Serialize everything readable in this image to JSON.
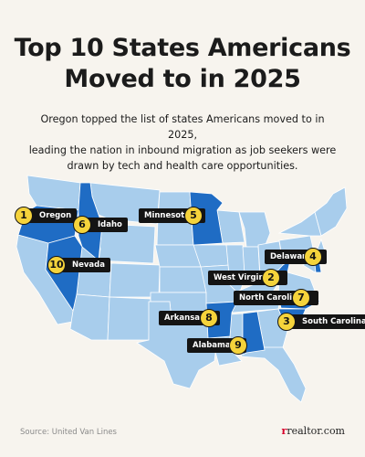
{
  "title": {
    "line1": "Top 10 States Americans",
    "line2": "Moved to in 2025"
  },
  "subtitle": {
    "line1": "Oregon topped the list of states Americans moved to in 2025,",
    "line2": "leading the nation in inbound migration as job seekers were",
    "line3": "drawn by tech and health care opportunities."
  },
  "colors": {
    "highlight": "#1f6cc4",
    "base": "#a8cdec",
    "border": "#ffffff",
    "badge": "#f5d33b",
    "label_bg": "#141414"
  },
  "rankings": [
    {
      "rank": "1",
      "state": "Oregon"
    },
    {
      "rank": "2",
      "state": "West Virginia"
    },
    {
      "rank": "3",
      "state": "South Carolina"
    },
    {
      "rank": "4",
      "state": "Delaware"
    },
    {
      "rank": "5",
      "state": "Minnesota"
    },
    {
      "rank": "6",
      "state": "Idaho"
    },
    {
      "rank": "7",
      "state": "North Carolina"
    },
    {
      "rank": "8",
      "state": "Arkansas"
    },
    {
      "rank": "9",
      "state": "Alabama"
    },
    {
      "rank": "10",
      "state": "Nevada"
    }
  ],
  "footer": {
    "source": "Source: United Van Lines",
    "logo_r": "r",
    "logo_rest": "realtor.com"
  }
}
